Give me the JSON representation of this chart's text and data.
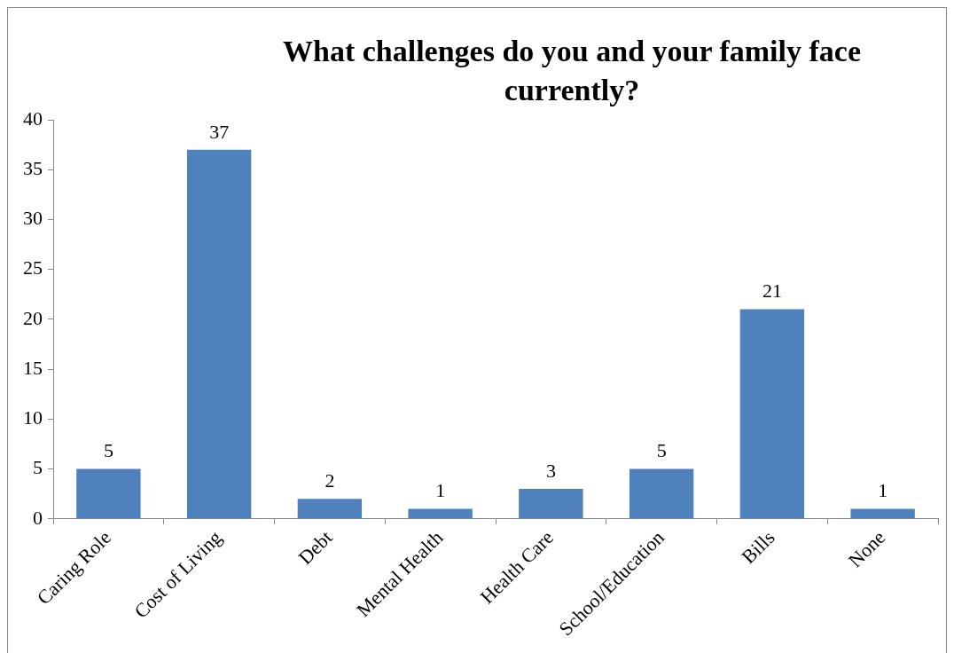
{
  "chart_data": {
    "type": "bar",
    "title": "What challenges do you and your family face currently?",
    "categories": [
      "Caring Role",
      "Cost of Living",
      "Debt",
      "Mental Health",
      "Health Care",
      "School/Education",
      "Bills",
      "None"
    ],
    "values": [
      5,
      37,
      2,
      1,
      3,
      5,
      21,
      1
    ],
    "color": "#4f81bd",
    "ylim": [
      0,
      40
    ],
    "yticks": [
      0,
      5,
      10,
      15,
      20,
      25,
      30,
      35,
      40
    ],
    "grid": false,
    "legend": false,
    "data_labels": true
  }
}
